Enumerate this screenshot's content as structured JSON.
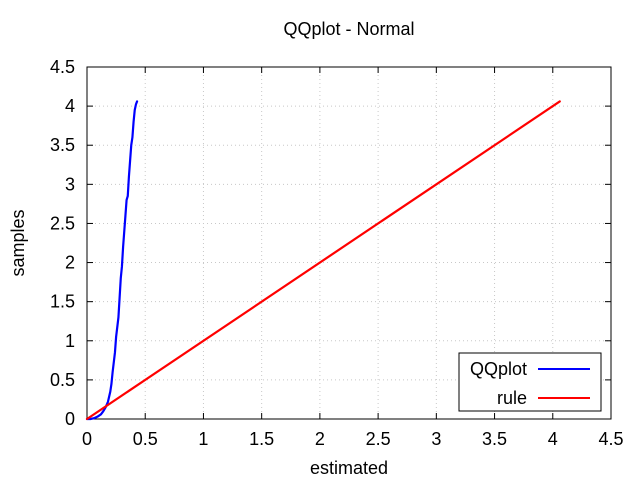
{
  "chart_data": {
    "type": "line",
    "title": "QQplot - Normal",
    "xlabel": "estimated",
    "ylabel": "samples",
    "xlim": [
      0,
      4.5
    ],
    "ylim": [
      0,
      4.5
    ],
    "x_ticks": [
      "0",
      "0.5",
      "1",
      "1.5",
      "2",
      "2.5",
      "3",
      "3.5",
      "4",
      "4.5"
    ],
    "y_ticks": [
      "0",
      "0.5",
      "1",
      "1.5",
      "2",
      "2.5",
      "3",
      "3.5",
      "4",
      "4.5"
    ],
    "grid": true,
    "legend_position": "bottom-right",
    "series": [
      {
        "name": "QQplot",
        "color": "#0000ff",
        "x": [
          0,
          0.03,
          0.06,
          0.09,
          0.12,
          0.14,
          0.16,
          0.18,
          0.2,
          0.21,
          0.22,
          0.24,
          0.25,
          0.27,
          0.28,
          0.29,
          0.3,
          0.31,
          0.32,
          0.33,
          0.34,
          0.35,
          0.36,
          0.37,
          0.38,
          0.39,
          0.4,
          0.41,
          0.42,
          0.43
        ],
        "y": [
          0,
          0.0,
          0.01,
          0.03,
          0.06,
          0.1,
          0.15,
          0.22,
          0.35,
          0.45,
          0.6,
          0.85,
          1.05,
          1.3,
          1.55,
          1.8,
          1.95,
          2.2,
          2.4,
          2.6,
          2.8,
          2.85,
          3.1,
          3.3,
          3.5,
          3.6,
          3.8,
          3.95,
          4.02,
          4.06
        ]
      },
      {
        "name": "rule",
        "color": "#ff0000",
        "x": [
          0,
          4.06
        ],
        "y": [
          0,
          4.06
        ]
      }
    ]
  }
}
